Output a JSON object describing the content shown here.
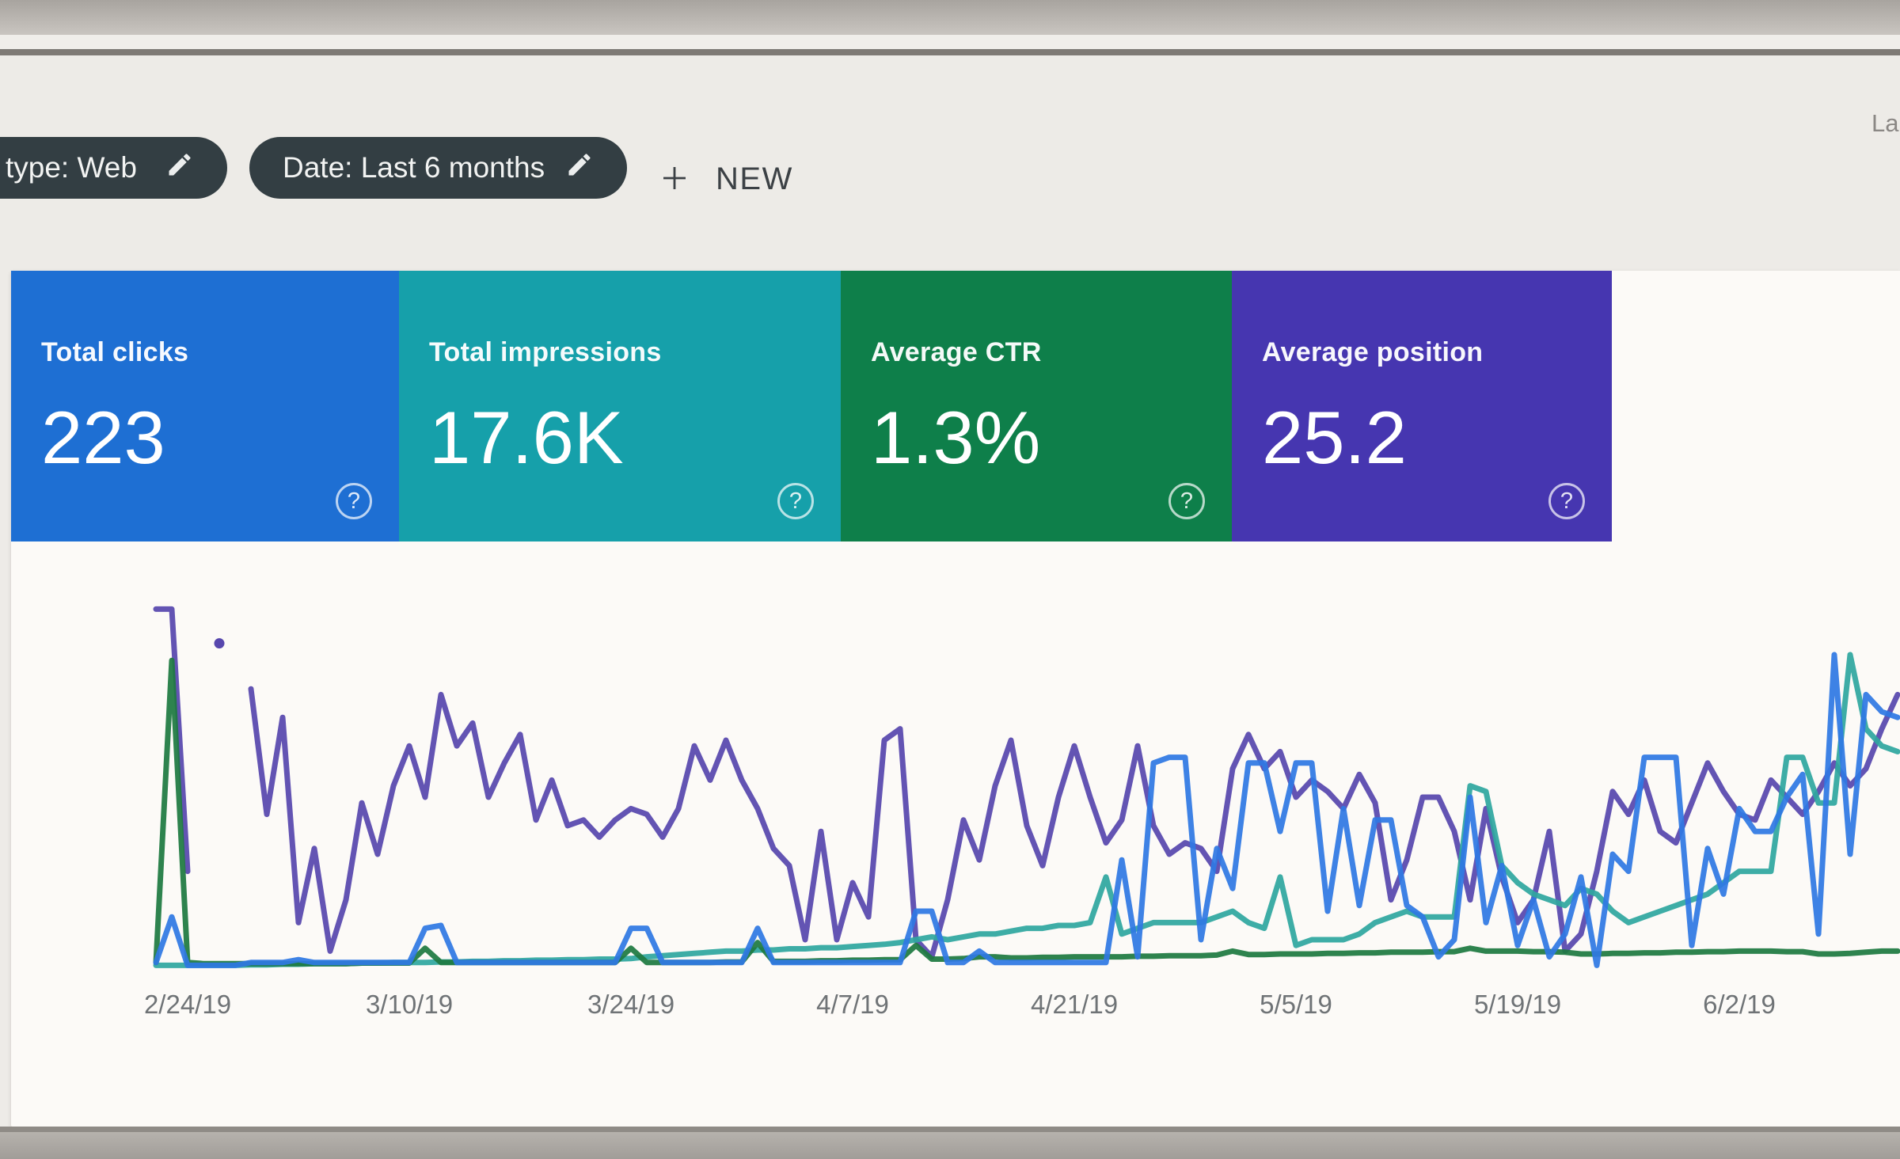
{
  "toolbar": {
    "chips": [
      {
        "label": "type: Web"
      },
      {
        "label": "Date: Last 6 months"
      }
    ],
    "new_button": {
      "label": "NEW"
    },
    "partial_right_text": "La"
  },
  "icons": {
    "help": "?"
  },
  "metric_cards": [
    {
      "label": "Total clicks",
      "value": "223",
      "color": "#1e6fd3"
    },
    {
      "label": "Total impressions",
      "value": "17.6K",
      "color": "#16a0aa"
    },
    {
      "label": "Average CTR",
      "value": "1.3%",
      "color": "#0e7f4a"
    },
    {
      "label": "Average position",
      "value": "25.2",
      "color": "#4636b0"
    }
  ],
  "chart_data": {
    "type": "line",
    "title": "",
    "xlabel": "",
    "ylabel": "",
    "legend": "none",
    "grid": false,
    "y_axis_note": "no y-axis shown; values are relative heights in % of plot height",
    "x_axis": {
      "num_days": 111,
      "tick_labels": [
        "2/24/19",
        "3/10/19",
        "3/24/19",
        "4/7/19",
        "4/21/19",
        "5/5/19",
        "5/19/19",
        "6/2/19"
      ],
      "tick_day_indices": [
        2,
        16,
        30,
        44,
        58,
        72,
        86,
        100
      ]
    },
    "series": [
      {
        "name": "Position",
        "color": "#5747ad",
        "isolated_point": {
          "day_index": 4,
          "value": 57
        },
        "values": [
          63,
          63,
          17,
          null,
          null,
          null,
          49,
          27,
          44,
          8,
          21,
          3,
          12,
          29,
          20,
          32,
          39,
          30,
          48,
          39,
          43,
          30,
          36,
          41,
          26,
          33,
          25,
          26,
          23,
          26,
          28,
          27,
          23,
          28,
          39,
          33,
          40,
          33,
          28,
          21,
          18,
          5,
          24,
          5,
          15,
          9,
          40,
          42,
          5,
          2,
          12,
          26,
          19,
          32,
          40,
          25,
          18,
          30,
          39,
          30,
          22,
          26,
          39,
          25,
          20,
          22,
          21,
          17,
          35,
          41,
          35,
          38,
          30,
          33,
          31,
          28,
          34,
          29,
          12,
          19,
          30,
          30,
          24,
          12,
          28,
          16,
          8,
          12,
          24,
          3,
          6,
          17,
          31,
          27,
          33,
          24,
          22,
          29,
          36,
          31,
          27,
          26,
          33,
          30,
          27,
          31,
          36,
          32,
          35,
          42,
          48
        ]
      },
      {
        "name": "Impressions",
        "color": "#2fa79f",
        "values": [
          0.5,
          0.5,
          0.5,
          0.5,
          0.5,
          0.5,
          0.6,
          0.6,
          0.7,
          0.7,
          0.8,
          0.8,
          0.8,
          0.9,
          0.9,
          1,
          1,
          1,
          1.1,
          1.1,
          1.2,
          1.2,
          1.3,
          1.3,
          1.4,
          1.4,
          1.5,
          1.5,
          1.6,
          1.6,
          1.7,
          2,
          2.2,
          2.4,
          2.6,
          2.8,
          3,
          3,
          3.2,
          3.2,
          3.4,
          3.4,
          3.6,
          3.6,
          3.8,
          4,
          4.2,
          4.5,
          5,
          5.5,
          5,
          5.5,
          6,
          6,
          6.5,
          7,
          7,
          7.5,
          7.5,
          8,
          16,
          6,
          7,
          8,
          8,
          8,
          8,
          9,
          10,
          8,
          7,
          16,
          4,
          5,
          5,
          5,
          6,
          8,
          9,
          10,
          9,
          9,
          9,
          32,
          31,
          18,
          15,
          13,
          12,
          11,
          14,
          13,
          10,
          8,
          9,
          10,
          11,
          12,
          13,
          15,
          17,
          17,
          17,
          37,
          37,
          29,
          29,
          55,
          42,
          39,
          38
        ]
      },
      {
        "name": "CTR",
        "color": "#1e7a41",
        "values": [
          1,
          54,
          1,
          0.8,
          0.8,
          0.8,
          0.8,
          0.8,
          0.8,
          0.8,
          0.8,
          0.8,
          0.8,
          0.9,
          0.9,
          0.9,
          0.9,
          3.5,
          1,
          1,
          1,
          1,
          1,
          1,
          1,
          1,
          1,
          1,
          1,
          1,
          3.5,
          1,
          1,
          1,
          1,
          1,
          1.1,
          1.1,
          4.5,
          1.2,
          1.2,
          1.2,
          1.3,
          1.3,
          1.4,
          1.4,
          1.5,
          1.5,
          4,
          1.6,
          1.6,
          1.7,
          2,
          2,
          1.8,
          1.8,
          1.9,
          1.9,
          2,
          2,
          2,
          2,
          2.1,
          2.1,
          2.2,
          2.2,
          2.2,
          2.3,
          3,
          2.4,
          2.4,
          2.5,
          2.5,
          2.5,
          2.6,
          2.6,
          2.7,
          2.7,
          2.8,
          2.8,
          2.8,
          2.9,
          2.9,
          3.5,
          3,
          3,
          3,
          2.9,
          2.9,
          2.8,
          2.5,
          2.5,
          2.6,
          2.6,
          2.7,
          2.7,
          2.8,
          2.8,
          2.9,
          2.9,
          3,
          3,
          3,
          2.9,
          2.9,
          2.5,
          2.5,
          2.6,
          2.8,
          3,
          3
        ]
      },
      {
        "name": "Clicks",
        "color": "#2f79e3",
        "values": [
          1,
          9,
          0.5,
          0.5,
          0.5,
          0.5,
          1,
          1,
          1,
          1.5,
          1,
          1,
          1,
          1,
          1,
          1,
          1,
          7,
          7.5,
          1,
          1,
          1,
          1,
          1,
          1,
          1,
          1,
          1,
          1,
          1,
          7,
          7,
          1,
          1,
          1,
          1,
          1,
          1,
          7,
          1,
          1,
          1,
          1,
          1,
          1,
          1,
          1,
          1,
          10,
          10,
          1,
          1,
          3,
          1,
          1,
          1,
          1,
          1,
          1,
          1,
          1,
          19,
          2,
          36,
          37,
          37,
          5,
          21,
          14,
          36,
          36,
          24,
          36,
          36,
          10,
          28,
          11,
          26,
          26,
          11,
          9,
          2,
          5,
          30,
          8,
          18,
          4,
          12,
          2,
          6,
          16,
          0.5,
          20,
          17,
          37,
          37,
          37,
          4,
          21,
          13,
          28,
          24,
          24,
          30,
          34,
          6,
          55,
          20,
          48,
          45,
          44
        ]
      }
    ]
  }
}
